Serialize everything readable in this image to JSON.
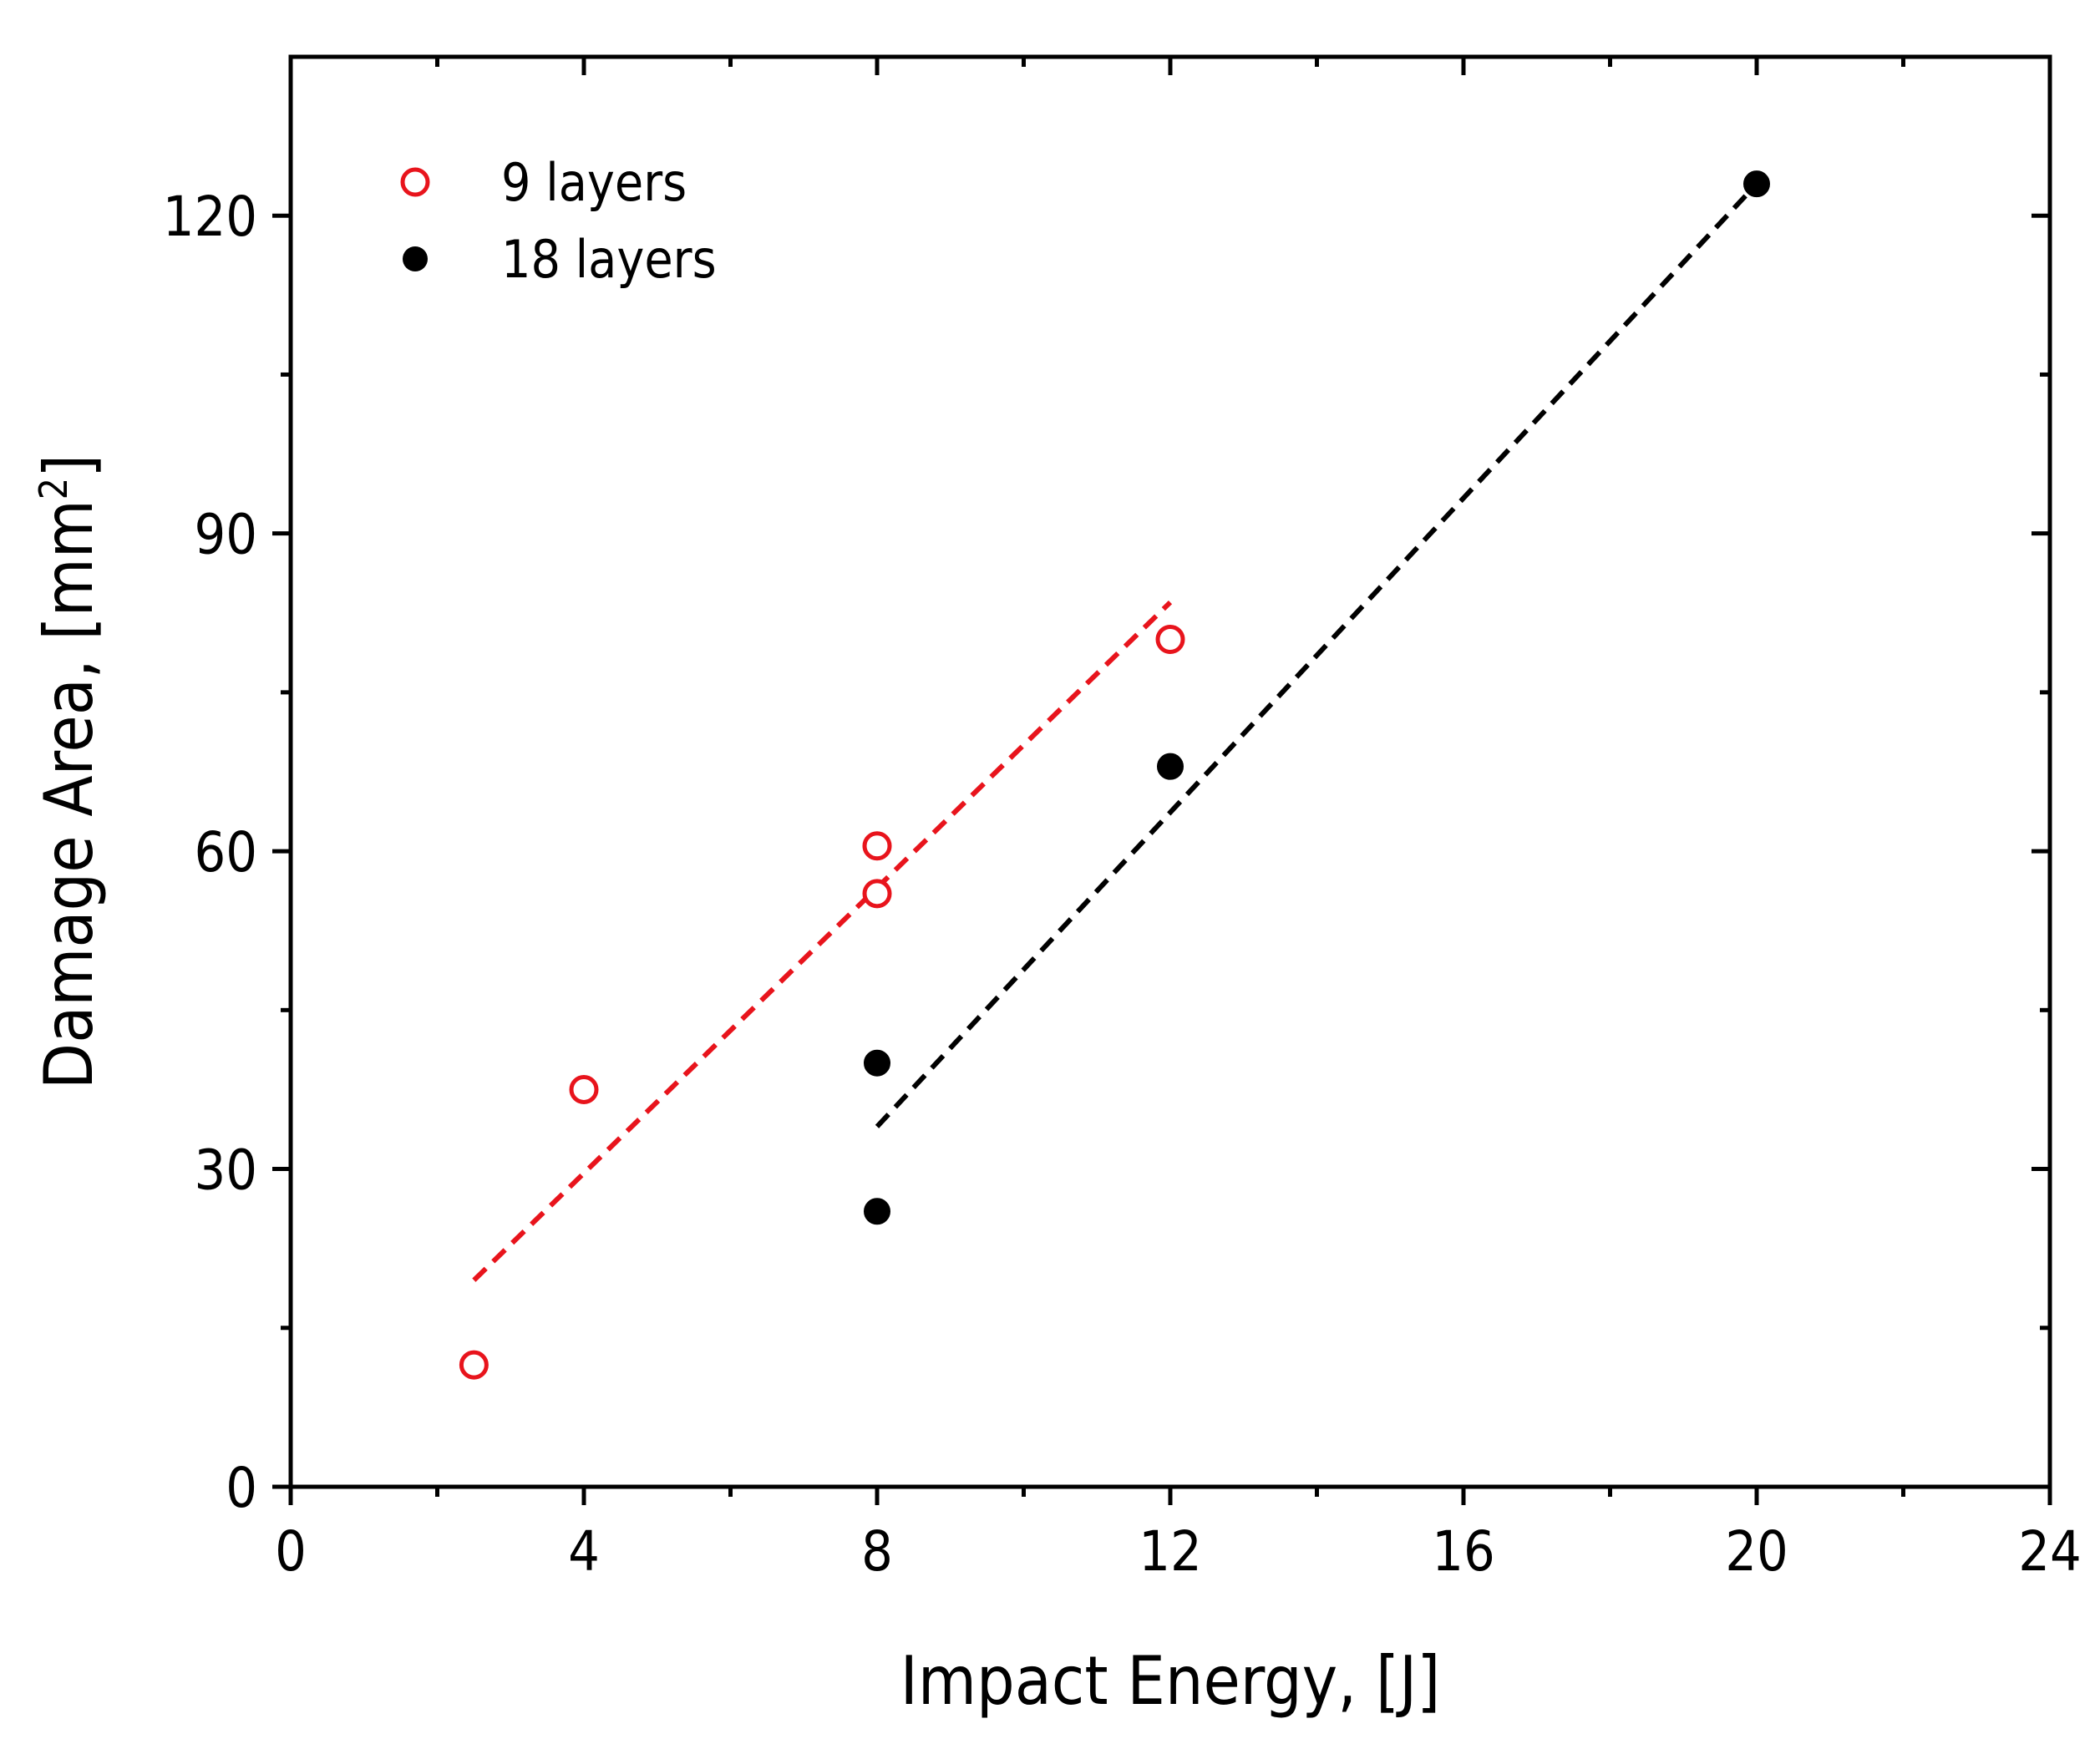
{
  "chart_data": {
    "type": "scatter",
    "title": "",
    "xlabel": "Impact Energy, [J]",
    "ylabel_main": "Damage Area, [mm",
    "ylabel_sup": "2",
    "ylabel_close": "]",
    "xlim": [
      0,
      24
    ],
    "ylim": [
      0,
      135
    ],
    "xticks": [
      0,
      4,
      8,
      12,
      16,
      20,
      24
    ],
    "yticks": [
      0,
      30,
      60,
      90,
      120
    ],
    "xticks_minor": [
      2,
      6,
      10,
      14,
      18,
      22
    ],
    "yticks_minor": [
      15,
      45,
      75,
      105
    ],
    "grid": false,
    "legend_position": "top-left",
    "series": [
      {
        "name": "9 layers",
        "marker": "open-circle",
        "color": "#e8141c",
        "points": [
          {
            "x": 2.5,
            "y": 11.5
          },
          {
            "x": 4,
            "y": 37.5
          },
          {
            "x": 8,
            "y": 60.5
          },
          {
            "x": 8,
            "y": 56.0
          },
          {
            "x": 12,
            "y": 80.0
          }
        ],
        "fit": {
          "x": [
            2.5,
            12
          ],
          "y": [
            19.5,
            83.5
          ]
        }
      },
      {
        "name": "18 layers",
        "marker": "filled-circle",
        "color": "#000000",
        "points": [
          {
            "x": 8,
            "y": 26.0
          },
          {
            "x": 8,
            "y": 40.0
          },
          {
            "x": 12,
            "y": 68.0
          },
          {
            "x": 20,
            "y": 123.0
          }
        ],
        "fit": {
          "x": [
            8,
            20
          ],
          "y": [
            34.0,
            123.0
          ]
        }
      }
    ]
  }
}
